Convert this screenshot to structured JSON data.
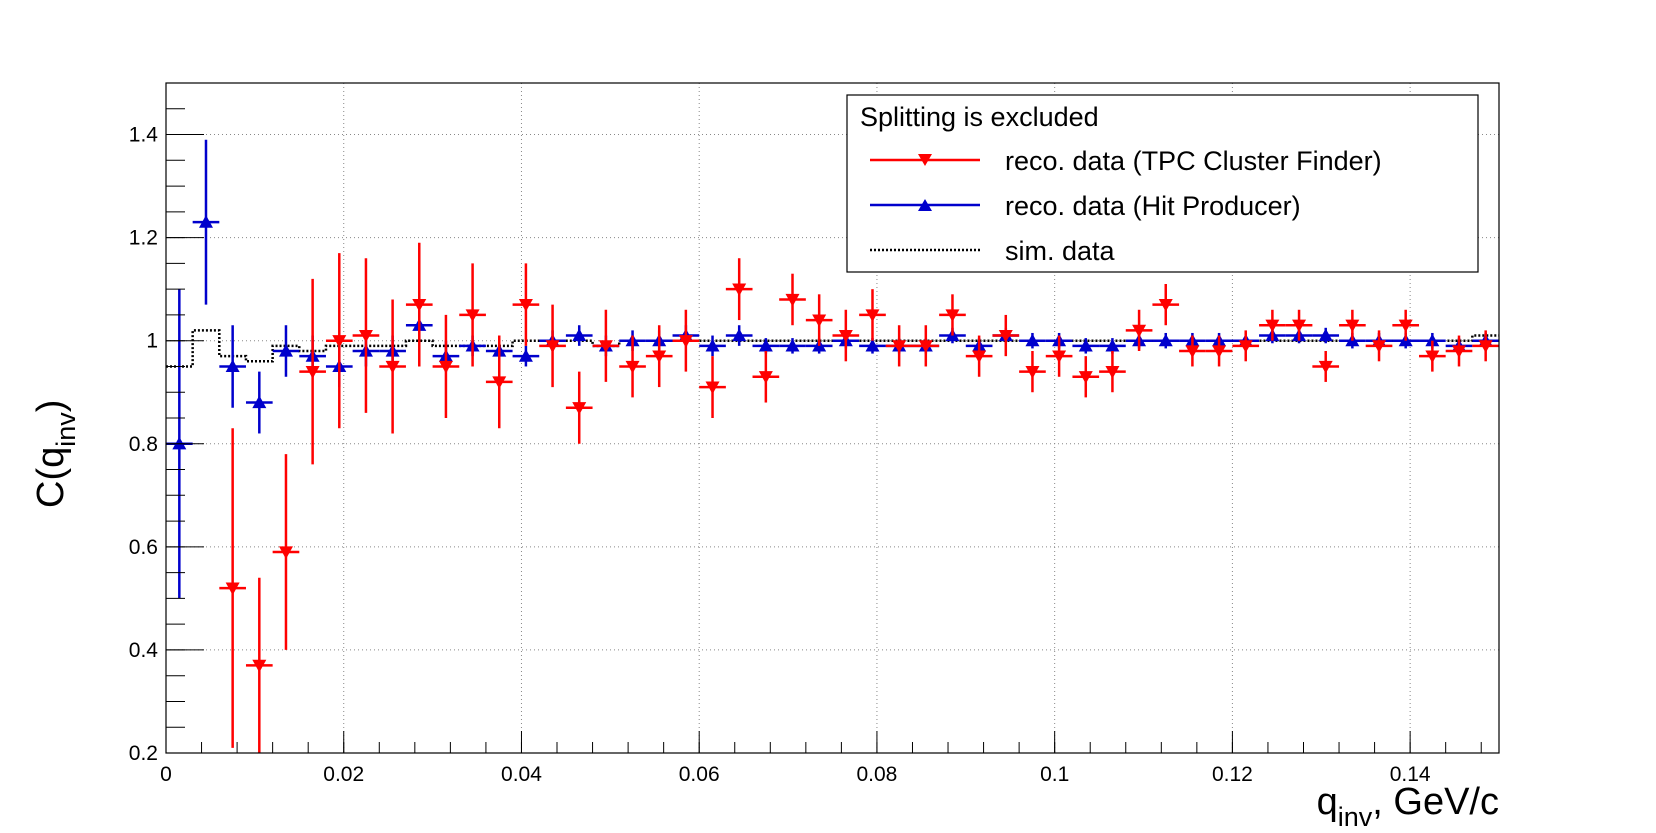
{
  "chart_data": {
    "type": "scatter",
    "xlabel_main": "q",
    "xlabel_sub": "inv",
    "xlabel_suffix": ", GeV/c",
    "ylabel_main": "C(q",
    "ylabel_sub": "inv",
    "ylabel_suffix": ")",
    "xlim": [
      0,
      0.15
    ],
    "ylim": [
      0.2,
      1.5
    ],
    "xticks": [
      0,
      0.02,
      0.04,
      0.06,
      0.08,
      0.1,
      0.12,
      0.14
    ],
    "xtick_labels": [
      "0",
      "0.02",
      "0.04",
      "0.06",
      "0.08",
      "0.1",
      "0.12",
      "0.14"
    ],
    "yticks": [
      0.2,
      0.4,
      0.6,
      0.8,
      1.0,
      1.2,
      1.4
    ],
    "ytick_labels": [
      "0.2",
      "0.4",
      "0.6",
      "0.8",
      "1",
      "1.2",
      "1.4"
    ],
    "grid": true,
    "bin_width": 0.003,
    "legend": {
      "position": "top-right",
      "header": "Splitting is excluded",
      "entries": [
        {
          "label": "reco. data (TPC Cluster Finder)",
          "color": "#ff0000",
          "marker": "triangle-down",
          "style": "solid"
        },
        {
          "label": "reco. data (Hit Producer)",
          "color": "#0000cc",
          "marker": "triangle-up",
          "style": "solid"
        },
        {
          "label": "sim. data",
          "color": "#000000",
          "marker": "none",
          "style": "dotted"
        }
      ]
    },
    "series": [
      {
        "name": "reco. data (TPC Cluster Finder)",
        "color": "#ff0000",
        "marker": "triangle-down",
        "x": [
          0.0075,
          0.0105,
          0.0135,
          0.0165,
          0.0195,
          0.0225,
          0.0255,
          0.0285,
          0.0315,
          0.0345,
          0.0375,
          0.0405,
          0.0435,
          0.0465,
          0.0495,
          0.0525,
          0.0555,
          0.0585,
          0.0615,
          0.0645,
          0.0675,
          0.0705,
          0.0735,
          0.0765,
          0.0795,
          0.0825,
          0.0855,
          0.0885,
          0.0915,
          0.0945,
          0.0975,
          0.1005,
          0.1035,
          0.1065,
          0.1095,
          0.1125,
          0.1155,
          0.1185,
          0.1215,
          0.1245,
          0.1275,
          0.1305,
          0.1335,
          0.1365,
          0.1395,
          0.1425,
          0.1455,
          0.1485
        ],
        "y": [
          0.52,
          0.37,
          0.59,
          0.94,
          1.0,
          1.01,
          0.95,
          1.07,
          0.95,
          1.05,
          0.92,
          1.07,
          0.99,
          0.87,
          0.99,
          0.95,
          0.97,
          1.0,
          0.91,
          1.1,
          0.93,
          1.08,
          1.04,
          1.01,
          1.05,
          0.99,
          0.99,
          1.05,
          0.97,
          1.01,
          0.94,
          0.97,
          0.93,
          0.94,
          1.02,
          1.07,
          0.98,
          0.98,
          0.99,
          1.03,
          1.03,
          0.95,
          1.03,
          0.99,
          1.03,
          0.97,
          0.98,
          0.99
        ],
        "err": [
          0.31,
          0.17,
          0.19,
          0.18,
          0.17,
          0.15,
          0.13,
          0.12,
          0.1,
          0.1,
          0.09,
          0.08,
          0.08,
          0.07,
          0.07,
          0.06,
          0.06,
          0.06,
          0.06,
          0.06,
          0.05,
          0.05,
          0.05,
          0.05,
          0.05,
          0.04,
          0.04,
          0.04,
          0.04,
          0.04,
          0.04,
          0.04,
          0.04,
          0.04,
          0.04,
          0.04,
          0.03,
          0.03,
          0.03,
          0.03,
          0.03,
          0.03,
          0.03,
          0.03,
          0.03,
          0.03,
          0.03,
          0.03
        ]
      },
      {
        "name": "reco. data (Hit Producer)",
        "color": "#0000cc",
        "marker": "triangle-up",
        "x": [
          0.0015,
          0.0045,
          0.0075,
          0.0105,
          0.0135,
          0.0165,
          0.0195,
          0.0225,
          0.0255,
          0.0285,
          0.0315,
          0.0345,
          0.0375,
          0.0405,
          0.0435,
          0.0465,
          0.0495,
          0.0525,
          0.0555,
          0.0585,
          0.0615,
          0.0645,
          0.0675,
          0.0705,
          0.0735,
          0.0765,
          0.0795,
          0.0825,
          0.0855,
          0.0885,
          0.0915,
          0.0945,
          0.0975,
          0.1005,
          0.1035,
          0.1065,
          0.1095,
          0.1125,
          0.1155,
          0.1185,
          0.1215,
          0.1245,
          0.1275,
          0.1305,
          0.1335,
          0.1365,
          0.1395,
          0.1425,
          0.1455,
          0.1485
        ],
        "y": [
          0.8,
          1.23,
          0.95,
          0.88,
          0.98,
          0.97,
          0.95,
          0.98,
          0.98,
          1.03,
          0.97,
          0.99,
          0.98,
          0.97,
          1.0,
          1.01,
          0.99,
          1.0,
          1.0,
          1.01,
          0.99,
          1.01,
          0.99,
          0.99,
          0.99,
          1.0,
          0.99,
          0.99,
          0.99,
          1.01,
          0.99,
          1.01,
          1.0,
          1.0,
          0.99,
          0.99,
          1.0,
          1.0,
          1.0,
          1.0,
          1.0,
          1.01,
          1.01,
          1.01,
          1.0,
          1.0,
          1.0,
          1.0,
          0.99,
          1.0
        ],
        "err": [
          0.3,
          0.16,
          0.08,
          0.06,
          0.05,
          0.04,
          0.04,
          0.03,
          0.03,
          0.03,
          0.03,
          0.02,
          0.02,
          0.02,
          0.02,
          0.02,
          0.02,
          0.02,
          0.02,
          0.02,
          0.02,
          0.02,
          0.015,
          0.015,
          0.015,
          0.015,
          0.015,
          0.015,
          0.015,
          0.015,
          0.015,
          0.015,
          0.015,
          0.015,
          0.015,
          0.015,
          0.015,
          0.015,
          0.015,
          0.015,
          0.015,
          0.015,
          0.015,
          0.015,
          0.015,
          0.015,
          0.015,
          0.015,
          0.015,
          0.015
        ]
      },
      {
        "name": "sim. data",
        "color": "#000000",
        "marker": "none",
        "x": [
          0.0015,
          0.0045,
          0.0075,
          0.0105,
          0.0135,
          0.0165,
          0.0195,
          0.0225,
          0.0255,
          0.0285,
          0.0315,
          0.0345,
          0.0375,
          0.0405,
          0.0435,
          0.0465,
          0.0495,
          0.0525,
          0.0555,
          0.0585,
          0.0615,
          0.0645,
          0.0675,
          0.0705,
          0.0735,
          0.0765,
          0.0795,
          0.0825,
          0.0855,
          0.0885,
          0.0915,
          0.0945,
          0.0975,
          0.1005,
          0.1035,
          0.1065,
          0.1095,
          0.1125,
          0.1155,
          0.1185,
          0.1215,
          0.1245,
          0.1275,
          0.1305,
          0.1335,
          0.1365,
          0.1395,
          0.1425,
          0.1455,
          0.1485
        ],
        "y": [
          0.95,
          1.02,
          0.97,
          0.96,
          0.99,
          0.98,
          0.99,
          0.99,
          0.99,
          1.0,
          0.99,
          0.99,
          0.99,
          1.0,
          1.0,
          1.0,
          0.99,
          1.0,
          1.0,
          1.0,
          1.0,
          1.0,
          1.0,
          1.0,
          1.0,
          1.0,
          1.0,
          1.0,
          1.0,
          1.0,
          1.0,
          1.0,
          1.0,
          1.0,
          1.0,
          1.0,
          1.0,
          1.0,
          1.0,
          1.0,
          1.0,
          1.0,
          1.0,
          1.0,
          1.0,
          1.0,
          1.0,
          1.0,
          1.0,
          1.01
        ]
      }
    ]
  }
}
